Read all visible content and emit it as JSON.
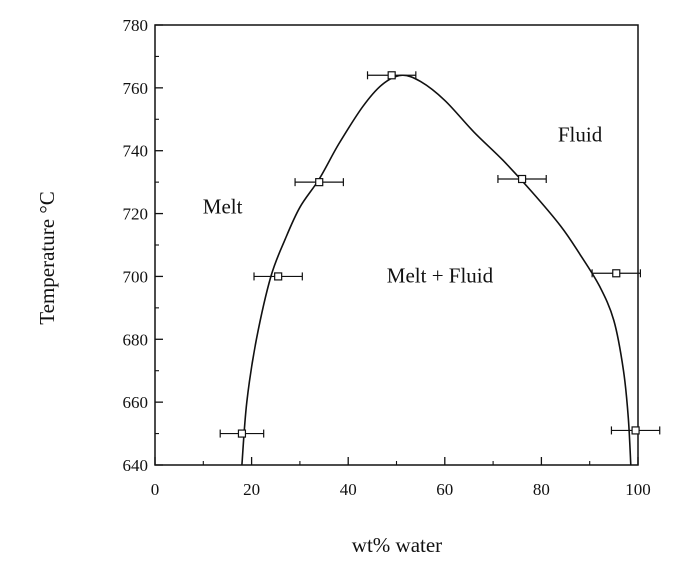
{
  "chart_data": {
    "type": "scatter",
    "title": "",
    "xlabel": "wt% water",
    "ylabel": "Temperature °C",
    "xlim": [
      0,
      100
    ],
    "ylim": [
      640,
      780
    ],
    "x_ticks": [
      0,
      20,
      40,
      60,
      80,
      100
    ],
    "y_ticks": [
      640,
      660,
      680,
      700,
      720,
      740,
      760,
      780
    ],
    "grid": false,
    "points": [
      {
        "x": 18,
        "y": 650,
        "xerr": 4.5
      },
      {
        "x": 25.5,
        "y": 700,
        "xerr": 5
      },
      {
        "x": 34,
        "y": 730,
        "xerr": 5
      },
      {
        "x": 49,
        "y": 764,
        "xerr": 5
      },
      {
        "x": 76,
        "y": 731,
        "xerr": 5
      },
      {
        "x": 95.5,
        "y": 701,
        "xerr": 5
      },
      {
        "x": 99.5,
        "y": 651,
        "xerr": 5
      }
    ],
    "solvus_curve": [
      [
        18,
        640
      ],
      [
        19,
        660
      ],
      [
        21,
        680
      ],
      [
        24,
        700
      ],
      [
        27,
        712
      ],
      [
        30,
        722
      ],
      [
        34,
        731
      ],
      [
        38,
        742
      ],
      [
        43,
        754
      ],
      [
        47,
        761
      ],
      [
        51,
        764
      ],
      [
        55,
        762
      ],
      [
        60,
        756
      ],
      [
        66,
        746
      ],
      [
        72,
        737
      ],
      [
        78,
        727
      ],
      [
        84,
        716
      ],
      [
        88,
        707
      ],
      [
        92,
        697
      ],
      [
        95,
        686
      ],
      [
        97,
        670
      ],
      [
        98,
        655
      ],
      [
        98.5,
        640
      ]
    ],
    "regions": [
      {
        "label": "Melt",
        "x": 14,
        "y": 720
      },
      {
        "label": "Melt + Fluid",
        "x": 59,
        "y": 698
      },
      {
        "label": "Fluid",
        "x": 88,
        "y": 743
      }
    ]
  }
}
